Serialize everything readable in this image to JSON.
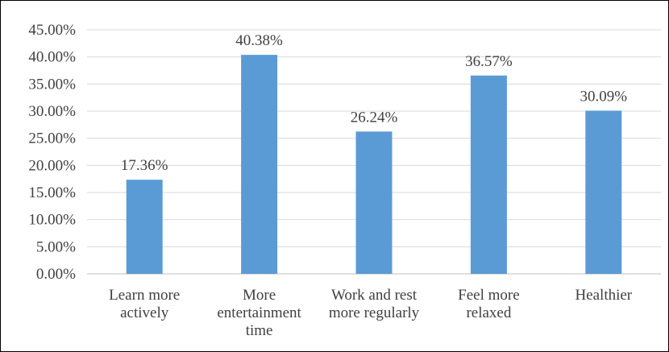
{
  "chart_data": {
    "type": "bar",
    "title": "",
    "xlabel": "",
    "ylabel": "",
    "categories": [
      [
        "Learn more",
        "actively"
      ],
      [
        "More",
        "entertainment",
        "time"
      ],
      [
        "Work and rest",
        "more regularly"
      ],
      [
        "Feel more",
        "relaxed"
      ],
      [
        "Healthier"
      ]
    ],
    "values": [
      17.36,
      40.38,
      26.24,
      36.57,
      30.09
    ],
    "data_labels": [
      "17.36%",
      "40.38%",
      "26.24%",
      "36.57%",
      "30.09%"
    ],
    "ylim": [
      0,
      45
    ],
    "yticks": [
      {
        "value": 0,
        "label": "0.00%"
      },
      {
        "value": 5,
        "label": "5.00%"
      },
      {
        "value": 10,
        "label": "10.00%"
      },
      {
        "value": 15,
        "label": "15.00%"
      },
      {
        "value": 20,
        "label": "20.00%"
      },
      {
        "value": 25,
        "label": "25.00%"
      },
      {
        "value": 30,
        "label": "30.00%"
      },
      {
        "value": 35,
        "label": "35.00%"
      },
      {
        "value": 40,
        "label": "40.00%"
      },
      {
        "value": 45,
        "label": "45.00%"
      }
    ],
    "grid": true,
    "legend": "none",
    "bar_color": "#5b9bd5"
  }
}
